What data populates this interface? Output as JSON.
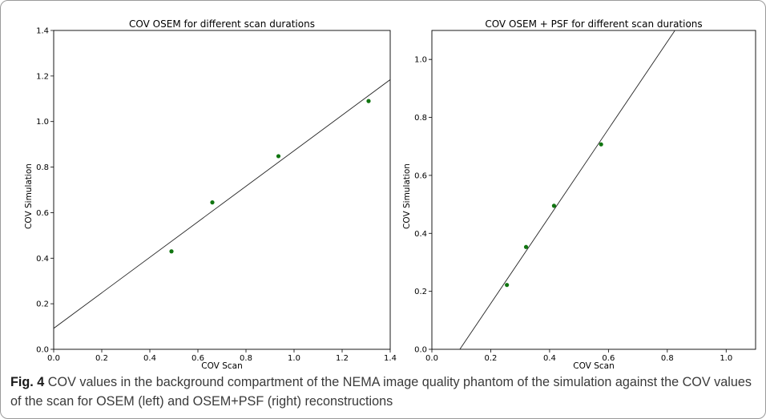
{
  "chart_data": [
    {
      "type": "scatter",
      "title": "COV OSEM for different scan durations",
      "xlabel": "COV Scan",
      "ylabel": "COV Simulation",
      "xlim": [
        0.0,
        1.4
      ],
      "ylim": [
        0.0,
        1.4
      ],
      "xticks": [
        "0.0",
        "0.2",
        "0.4",
        "0.6",
        "0.8",
        "1.0",
        "1.2",
        "1.4"
      ],
      "yticks": [
        "0.0",
        "0.2",
        "0.4",
        "0.6",
        "0.8",
        "1.0",
        "1.2",
        "1.4"
      ],
      "xtick_values": [
        0.0,
        0.2,
        0.4,
        0.6,
        0.8,
        1.0,
        1.2,
        1.4
      ],
      "ytick_values": [
        0.0,
        0.2,
        0.4,
        0.6,
        0.8,
        1.0,
        1.2,
        1.4
      ],
      "points": [
        {
          "x": 0.49,
          "y": 0.43
        },
        {
          "x": 0.66,
          "y": 0.645
        },
        {
          "x": 0.935,
          "y": 0.848
        },
        {
          "x": 1.31,
          "y": 1.09
        }
      ],
      "fit_line": {
        "slope": 0.78,
        "intercept": 0.092
      },
      "point_color": "#107510",
      "line_color": "#222222",
      "grid": false
    },
    {
      "type": "scatter",
      "title": "COV OSEM + PSF for different scan durations",
      "xlabel": "COV Scan",
      "ylabel": "COV Simulation",
      "xlim": [
        0.0,
        1.1
      ],
      "ylim": [
        0.0,
        1.1
      ],
      "xticks": [
        "0.0",
        "0.2",
        "0.4",
        "0.6",
        "0.8",
        "1.0"
      ],
      "yticks": [
        "0.0",
        "0.2",
        "0.4",
        "0.6",
        "0.8",
        "1.0"
      ],
      "xtick_values": [
        0.0,
        0.2,
        0.4,
        0.6,
        0.8,
        1.0
      ],
      "ytick_values": [
        0.0,
        0.2,
        0.4,
        0.6,
        0.8,
        1.0
      ],
      "points": [
        {
          "x": 0.255,
          "y": 0.222
        },
        {
          "x": 0.32,
          "y": 0.353
        },
        {
          "x": 0.415,
          "y": 0.495
        },
        {
          "x": 0.575,
          "y": 0.707
        }
      ],
      "fit_line": {
        "slope": 1.505,
        "intercept": -0.143
      },
      "point_color": "#107510",
      "line_color": "#222222",
      "grid": false
    }
  ],
  "caption": {
    "label": "Fig. 4",
    "text": "COV values in the background compartment of the NEMA image quality phantom of the simulation against the COV values of the scan for OSEM (left) and OSEM+PSF (right) reconstructions"
  }
}
